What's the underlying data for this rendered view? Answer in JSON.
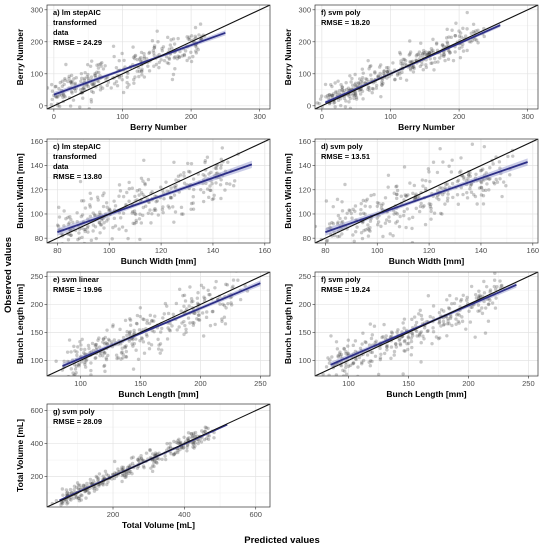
{
  "figure": {
    "observed_label": "Observed values",
    "predicted_label": "Predicted values"
  },
  "chart_data": [
    {
      "type": "scatter",
      "annotation": [
        "a) lm stepAIC",
        "transformed",
        "data",
        "RMSE = 24.29"
      ],
      "xlabel": "Berry Number",
      "ylabel": "Berry Number",
      "xlim": [
        -10,
        315
      ],
      "ylim": [
        -10,
        315
      ],
      "xticks": [
        0,
        100,
        200,
        300
      ],
      "yticks": [
        0,
        100,
        200,
        300
      ],
      "reference_line": "y = x",
      "fit": {
        "x": [
          0,
          250
        ],
        "y": [
          35,
          228
        ],
        "color": "#2d2f87",
        "ribbon": 8
      },
      "points": {
        "n": 300,
        "x_range": [
          5,
          235
        ],
        "slope": 0.78,
        "intercept": 32,
        "scatter_sd": 30
      }
    },
    {
      "type": "scatter",
      "annotation": [
        "f) svm poly",
        "RMSE = 18.20"
      ],
      "xlabel": "Berry Number",
      "ylabel": "Berry Number",
      "xlim": [
        -10,
        315
      ],
      "ylim": [
        -10,
        315
      ],
      "xticks": [
        0,
        100,
        200,
        300
      ],
      "yticks": [
        0,
        100,
        200,
        300
      ],
      "reference_line": "y = x",
      "fit": {
        "x": [
          5,
          260
        ],
        "y": [
          10,
          252
        ],
        "color": "#2d2f87",
        "ribbon": 6
      },
      "points": {
        "n": 350,
        "x_range": [
          5,
          245
        ],
        "slope": 0.95,
        "intercept": 8,
        "scatter_sd": 24
      }
    },
    {
      "type": "scatter",
      "annotation": [
        "c) lm stepAIC",
        "transformed",
        "data",
        "RMSE = 13.80"
      ],
      "xlabel": "Bunch Width [mm]",
      "ylabel": "Bunch Width [mm]",
      "xlim": [
        76,
        162
      ],
      "ylim": [
        76,
        162
      ],
      "xticks": [
        80,
        100,
        120,
        140,
        160
      ],
      "yticks": [
        80,
        100,
        120,
        140,
        160
      ],
      "reference_line": "y = x",
      "fit": {
        "x": [
          80,
          155
        ],
        "y": [
          85,
          141
        ],
        "color": "#2d2f87",
        "ribbon": 3
      },
      "points": {
        "n": 300,
        "x_range": [
          82,
          152
        ],
        "slope": 0.75,
        "intercept": 25,
        "scatter_sd": 13
      }
    },
    {
      "type": "scatter",
      "annotation": [
        "d) svm poly",
        "RMSE = 13.51"
      ],
      "xlabel": "Bunch Width [mm]",
      "ylabel": "Bunch Width [mm]",
      "xlim": [
        76,
        162
      ],
      "ylim": [
        76,
        162
      ],
      "xticks": [
        80,
        100,
        120,
        140,
        160
      ],
      "yticks": [
        80,
        100,
        120,
        140,
        160
      ],
      "reference_line": "y = x",
      "fit": {
        "x": [
          80,
          158
        ],
        "y": [
          85,
          143
        ],
        "color": "#2d2f87",
        "ribbon": 3
      },
      "points": {
        "n": 300,
        "x_range": [
          82,
          155
        ],
        "slope": 0.74,
        "intercept": 26,
        "scatter_sd": 13
      }
    },
    {
      "type": "scatter",
      "annotation": [
        "e) svm linear",
        "RMSE = 19.96"
      ],
      "xlabel": "Bunch Length [mm]",
      "ylabel": "Bunch Length [mm]",
      "xlim": [
        72,
        258
      ],
      "ylim": [
        72,
        258
      ],
      "xticks": [
        100,
        150,
        200,
        250
      ],
      "yticks": [
        100,
        150,
        200,
        250
      ],
      "reference_line": "y = x",
      "fit": {
        "x": [
          85,
          250
        ],
        "y": [
          90,
          238
        ],
        "color": "#2d2f87",
        "ribbon": 5
      },
      "points": {
        "n": 320,
        "x_range": [
          88,
          240
        ],
        "slope": 0.9,
        "intercept": 13,
        "scatter_sd": 20
      }
    },
    {
      "type": "scatter",
      "annotation": [
        "f) svm poly",
        "RMSE = 19.24"
      ],
      "xlabel": "Bunch Length [mm]",
      "ylabel": "Bunch Length [mm]",
      "xlim": [
        72,
        258
      ],
      "ylim": [
        72,
        258
      ],
      "xticks": [
        100,
        150,
        200,
        250
      ],
      "yticks": [
        100,
        150,
        200,
        250
      ],
      "reference_line": "y = x",
      "fit": {
        "x": [
          85,
          240
        ],
        "y": [
          92,
          235
        ],
        "color": "#2d2f87",
        "ribbon": 5
      },
      "points": {
        "n": 320,
        "x_range": [
          88,
          235
        ],
        "slope": 0.92,
        "intercept": 12,
        "scatter_sd": 19
      }
    },
    {
      "type": "scatter",
      "annotation": [
        "g) svm poly",
        "RMSE = 28.09"
      ],
      "xlabel": "Total Volume [mL]",
      "ylabel": "Total Volume [mL]",
      "xlim": [
        15,
        640
      ],
      "ylim": [
        15,
        640
      ],
      "xticks": [
        200,
        400,
        600
      ],
      "yticks": [
        200,
        400,
        600
      ],
      "reference_line": "y = x",
      "fit": {
        "x": [
          50,
          520
        ],
        "y": [
          55,
          515
        ],
        "color": "#2d2f87",
        "ribbon": 6
      },
      "points": {
        "n": 320,
        "x_range": [
          55,
          500
        ],
        "slope": 0.98,
        "intercept": 5,
        "scatter_sd": 28
      }
    }
  ]
}
